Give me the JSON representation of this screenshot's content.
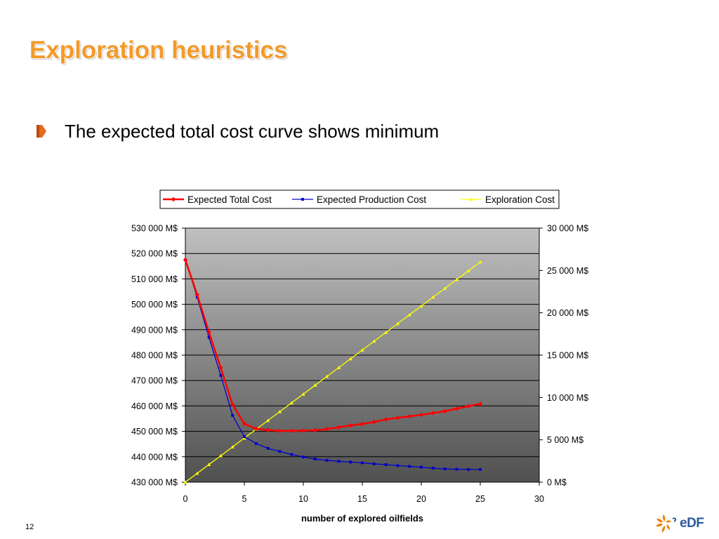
{
  "slide": {
    "title": "Exploration heuristics",
    "bullet": "The expected total cost curve shows minimum",
    "page_number": "12",
    "logo_text": "eDF"
  },
  "chart_data": {
    "type": "line",
    "title": "",
    "xlabel": "number of explored oilfields",
    "ylabel_left": "",
    "ylabel_right": "",
    "xlim": [
      0,
      30
    ],
    "x_ticks": [
      0,
      5,
      10,
      15,
      20,
      25,
      30
    ],
    "x_tick_labels": [
      "0",
      "5",
      "10",
      "15",
      "20",
      "25",
      "30"
    ],
    "ylim_left": [
      430000,
      530000
    ],
    "y_left_ticks": [
      530000,
      520000,
      510000,
      500000,
      490000,
      480000,
      470000,
      460000,
      450000,
      440000,
      430000
    ],
    "y_left_tick_labels": [
      "530 000 M$",
      "520 000 M$",
      "510 000 M$",
      "500 000 M$",
      "490 000 M$",
      "480 000 M$",
      "470 000 M$",
      "460 000 M$",
      "450 000 M$",
      "440 000 M$",
      "430 000 M$"
    ],
    "ylim_right": [
      0,
      30000
    ],
    "y_right_ticks": [
      30000,
      25000,
      20000,
      15000,
      10000,
      5000,
      0
    ],
    "y_right_tick_labels": [
      "30 000 M$",
      "25 000 M$",
      "20 000 M$",
      "15 000 M$",
      "10 000 M$",
      "5 000 M$",
      "0 M$"
    ],
    "grid": "horizontal",
    "legend_position": "top",
    "series": [
      {
        "name": "Expected Total Cost",
        "axis": "left",
        "color": "#ff0000",
        "marker": "diamond",
        "x": [
          0,
          1,
          2,
          3,
          4,
          5,
          6,
          7,
          8,
          9,
          10,
          11,
          12,
          13,
          14,
          15,
          16,
          17,
          18,
          19,
          20,
          21,
          22,
          23,
          24,
          25
        ],
        "values": [
          517500,
          503800,
          489000,
          475000,
          460500,
          453000,
          451000,
          450500,
          450200,
          450200,
          450300,
          450400,
          450900,
          451600,
          452300,
          452900,
          453700,
          454700,
          455300,
          455900,
          456500,
          457200,
          457900,
          458900,
          459900,
          460800
        ]
      },
      {
        "name": "Expected Production Cost",
        "axis": "left",
        "color": "#0000cc",
        "marker": "square",
        "x": [
          0,
          1,
          2,
          3,
          4,
          5,
          6,
          7,
          8,
          9,
          10,
          11,
          12,
          13,
          14,
          15,
          16,
          17,
          18,
          19,
          20,
          21,
          22,
          23,
          24,
          25
        ],
        "values": [
          517500,
          502800,
          487000,
          472000,
          456300,
          447900,
          445200,
          443300,
          442100,
          440900,
          439900,
          439100,
          438600,
          438200,
          437900,
          437600,
          437200,
          436900,
          436500,
          436200,
          435900,
          435500,
          435200,
          435100,
          435000,
          435000
        ]
      },
      {
        "name": "Exploration Cost",
        "axis": "right",
        "color": "#ffff00",
        "marker": "triangle",
        "x": [
          0,
          1,
          2,
          3,
          4,
          5,
          6,
          7,
          8,
          9,
          10,
          11,
          12,
          13,
          14,
          15,
          16,
          17,
          18,
          19,
          20,
          21,
          22,
          23,
          24,
          25
        ],
        "values": [
          0,
          1040,
          2080,
          3120,
          4160,
          5200,
          6240,
          7280,
          8320,
          9360,
          10400,
          11440,
          12480,
          13520,
          14560,
          15600,
          16640,
          17680,
          18720,
          19760,
          20800,
          21840,
          22880,
          23920,
          24960,
          26000
        ]
      }
    ]
  },
  "colors": {
    "title": "#f39a2a",
    "bullet": "#e56a1e",
    "plot_top": "#c0c0c0",
    "plot_bottom": "#505050",
    "logo_orange": "#f07d00",
    "logo_blue": "#2c5aa0"
  }
}
